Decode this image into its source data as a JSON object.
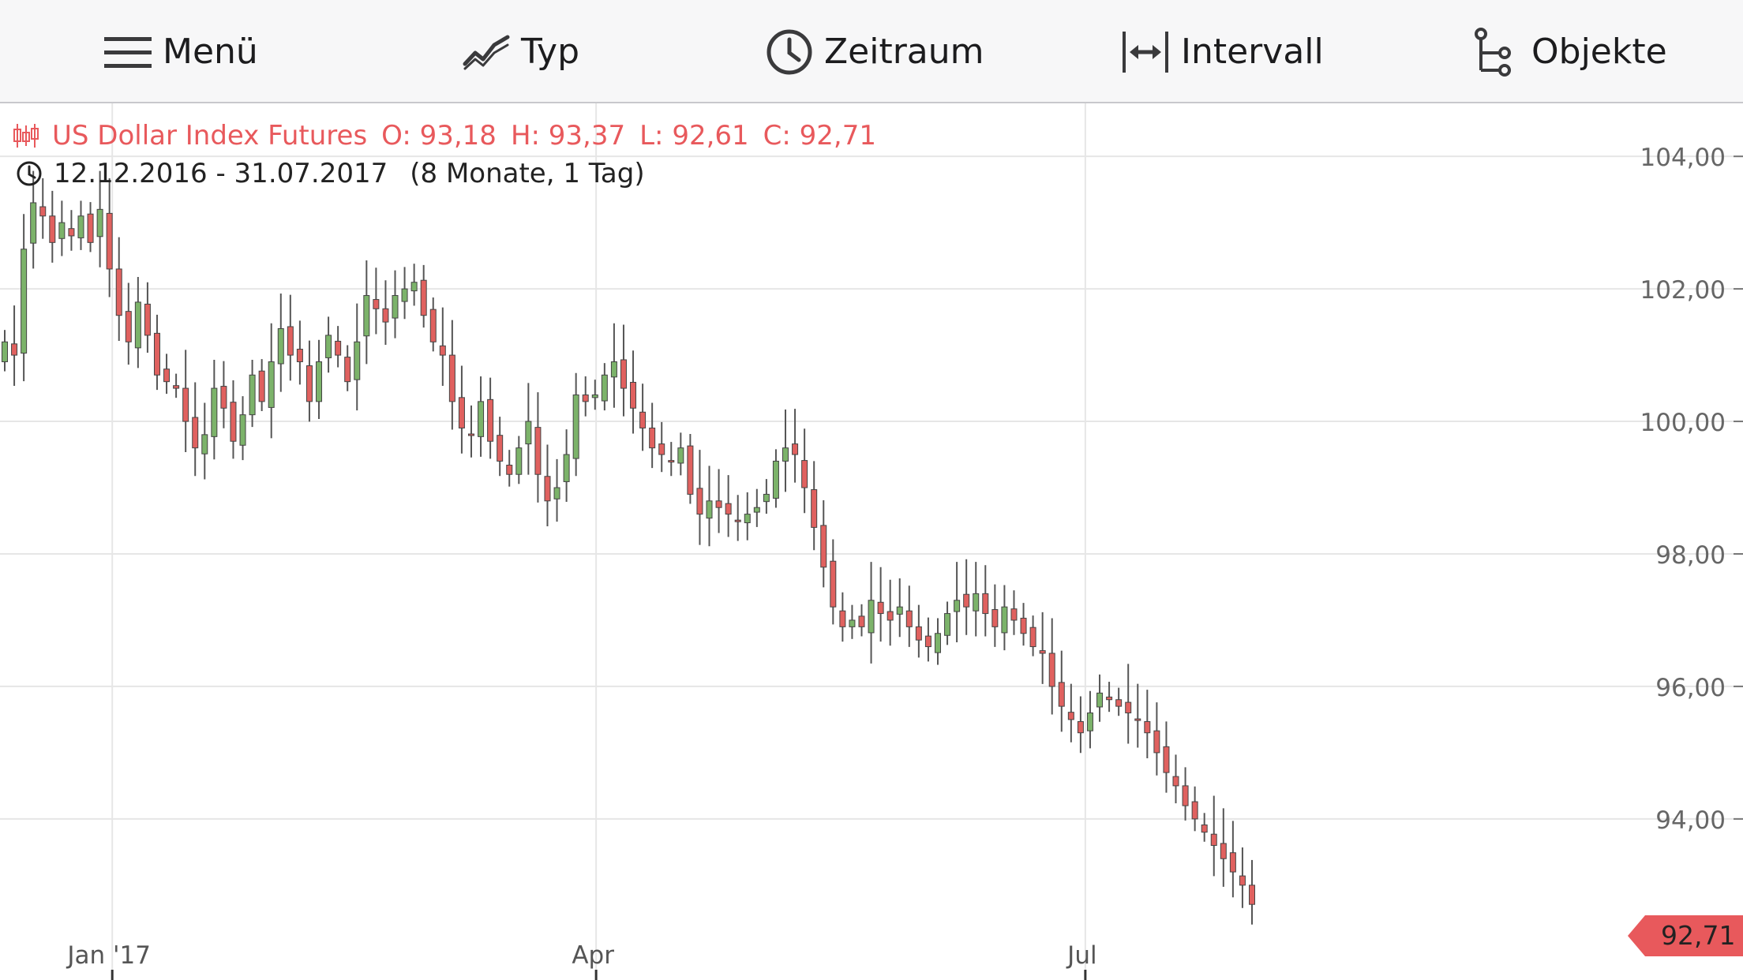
{
  "toolbar": {
    "items": [
      {
        "label": "Menü",
        "icon": "menu-icon"
      },
      {
        "label": "Typ",
        "icon": "line-chart-icon"
      },
      {
        "label": "Zeitraum",
        "icon": "clock-icon"
      },
      {
        "label": "Intervall",
        "icon": "interval-arrows-icon"
      },
      {
        "label": "Objekte",
        "icon": "objects-tree-icon"
      }
    ]
  },
  "info": {
    "instrument": "US Dollar Index Futures",
    "open": "O: 93,18",
    "high": "H: 93,37",
    "low": "L: 92,61",
    "close": "C: 92,71",
    "daterange": "12.12.2016 - 31.07.2017",
    "period": "(8 Monate, 1 Tag)"
  },
  "colors": {
    "up": "#7cb36a",
    "down": "#e0615f",
    "wick": "#555555",
    "accent": "#e8595c",
    "grid": "#e6e6e6"
  },
  "chart_data": {
    "type": "candlestick",
    "y_ticks": [
      94,
      96,
      98,
      100,
      102,
      104
    ],
    "y_tick_labels": [
      "94,00",
      "96,00",
      "98,00",
      "100,00",
      "102,00",
      "104,00"
    ],
    "ylim": [
      91.7,
      104.8
    ],
    "x_ticks": [
      {
        "label": "Jan '17",
        "day": 20
      },
      {
        "label": "Apr",
        "day": 110
      },
      {
        "label": "Jul",
        "day": 201
      }
    ],
    "last_price": 92.71,
    "last_price_label": "92,71",
    "close_series": [
      101.2,
      101.0,
      102.6,
      103.3,
      103.1,
      102.7,
      103.0,
      102.8,
      103.1,
      102.7,
      103.2,
      102.3,
      101.6,
      101.2,
      101.8,
      101.3,
      100.7,
      100.6,
      100.5,
      100.0,
      99.6,
      99.8,
      100.5,
      100.2,
      99.7,
      100.1,
      100.7,
      100.3,
      100.9,
      101.4,
      101.0,
      100.9,
      100.3,
      100.9,
      101.3,
      101.0,
      100.6,
      101.2,
      101.9,
      101.7,
      101.5,
      101.9,
      102.0,
      102.1,
      101.6,
      101.2,
      101.0,
      100.3,
      99.9,
      99.8,
      100.3,
      99.7,
      99.4,
      99.2,
      99.6,
      100.0,
      99.2,
      98.8,
      99.0,
      99.5,
      100.4,
      100.3,
      100.4,
      100.7,
      100.9,
      100.5,
      100.2,
      99.9,
      99.6,
      99.5,
      99.4,
      99.6,
      98.9,
      98.6,
      98.8,
      98.7,
      98.6,
      98.5,
      98.6,
      98.7,
      98.9,
      99.4,
      99.6,
      99.5,
      99.0,
      98.4,
      97.8,
      97.2,
      96.9,
      97.0,
      96.9,
      97.3,
      97.1,
      97.0,
      97.2,
      96.9,
      96.7,
      96.6,
      96.8,
      97.1,
      97.3,
      97.2,
      97.4,
      97.1,
      96.9,
      97.2,
      97.0,
      96.8,
      96.6,
      96.5,
      96.0,
      95.7,
      95.5,
      95.3,
      95.6,
      95.9,
      95.8,
      95.7,
      95.6,
      95.5,
      95.3,
      95.0,
      94.7,
      94.5,
      94.2,
      94.0,
      93.8,
      93.6,
      93.4,
      93.2,
      93.0,
      92.71
    ]
  }
}
